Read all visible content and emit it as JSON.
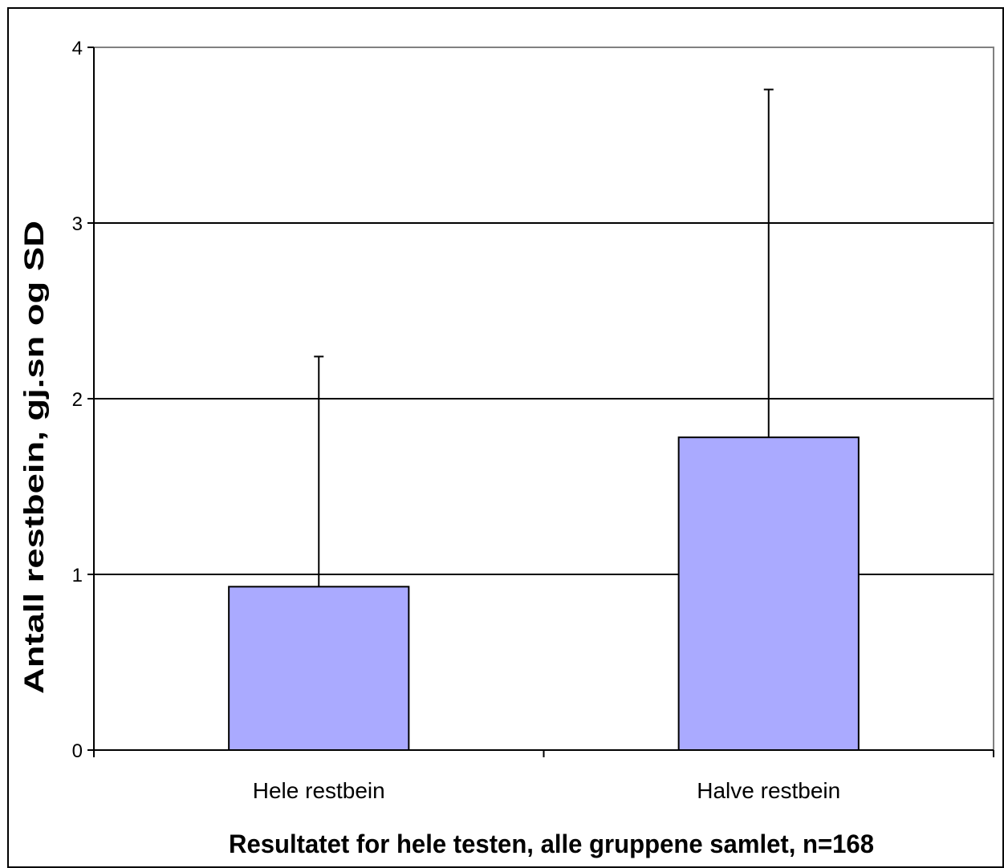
{
  "chart_data": {
    "type": "bar",
    "title": "",
    "xlabel": "Resultatet for hele testen, alle gruppene samlet, n=168",
    "ylabel": "Antall restbein, gj.sn og SD",
    "categories": [
      "Hele restbein",
      "Halve restbein"
    ],
    "values": [
      0.93,
      1.78
    ],
    "error": [
      1.31,
      1.98
    ],
    "ylim": [
      0,
      4
    ],
    "yticks": [
      "0",
      "1",
      "2",
      "3",
      "4"
    ],
    "grid": true,
    "legend": "none",
    "colors": {
      "bar": "#aaaaff",
      "bar_stroke": "#000000",
      "plot_border": "#808080",
      "grid": "#000000"
    }
  }
}
